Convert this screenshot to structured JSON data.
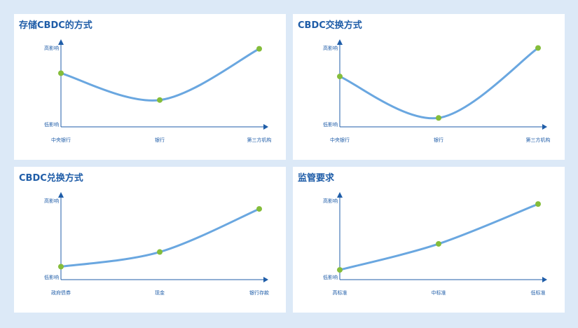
{
  "colors": {
    "line": "#6aa7e0",
    "point": "#85bd3a",
    "axis": "#1f5da8",
    "title": "#1f5da8",
    "background": "#dce9f7"
  },
  "chart_data": [
    {
      "type": "line",
      "title": "存储CBDC的方式",
      "categories": [
        "中央银行",
        "银行",
        "第三方机构"
      ],
      "y_tick_labels": {
        "high": "高影响",
        "low": "低影响"
      },
      "values": [
        0.66,
        0.33,
        0.96
      ],
      "ylim": [
        0,
        1
      ],
      "grid": false
    },
    {
      "type": "line",
      "title": "CBDC交换方式",
      "categories": [
        "中央银行",
        "银行",
        "第三方机构"
      ],
      "y_tick_labels": {
        "high": "高影响",
        "low": "低影响"
      },
      "values": [
        0.62,
        0.11,
        0.97
      ],
      "ylim": [
        0,
        1
      ],
      "grid": false
    },
    {
      "type": "line",
      "title": "CBDC兑换方式",
      "categories": [
        "政府债券",
        "现金",
        "银行存款"
      ],
      "y_tick_labels": {
        "high": "高影响",
        "low": "低影响"
      },
      "values": [
        0.16,
        0.34,
        0.87
      ],
      "ylim": [
        0,
        1
      ],
      "grid": false
    },
    {
      "type": "line",
      "title": "监管要求",
      "categories": [
        "高标准",
        "中标准",
        "低标准"
      ],
      "y_tick_labels": {
        "high": "高影响",
        "low": "低影响"
      },
      "values": [
        0.12,
        0.44,
        0.93
      ],
      "ylim": [
        0,
        1
      ],
      "grid": false
    }
  ]
}
